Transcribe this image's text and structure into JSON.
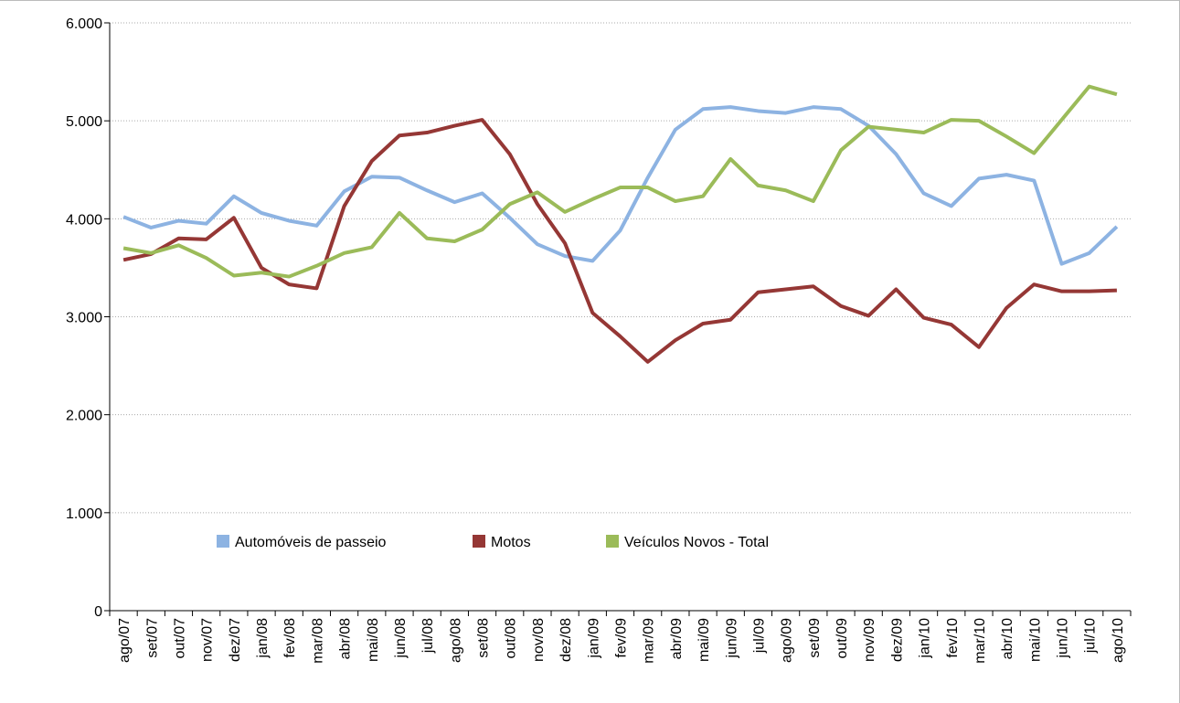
{
  "chart_data": {
    "type": "line",
    "categories": [
      "ago/07",
      "set/07",
      "out/07",
      "nov/07",
      "dez/07",
      "jan/08",
      "fev/08",
      "mar/08",
      "abr/08",
      "mai/08",
      "jun/08",
      "jul/08",
      "ago/08",
      "set/08",
      "out/08",
      "nov/08",
      "dez/08",
      "jan/09",
      "fev/09",
      "mar/09",
      "abr/09",
      "mai/09",
      "jun/09",
      "jul/09",
      "ago/09",
      "set/09",
      "out/09",
      "nov/09",
      "dez/09",
      "jan/10",
      "fev/10",
      "mar/10",
      "abr/10",
      "mai/10",
      "jun/10",
      "jul/10",
      "ago/10"
    ],
    "series": [
      {
        "name": "Automóveis de passeio",
        "color": "#8db3e2",
        "values": [
          4020,
          3910,
          3980,
          3950,
          4230,
          4060,
          3980,
          3930,
          4280,
          4430,
          4420,
          4290,
          4170,
          4260,
          4010,
          3740,
          3620,
          3570,
          3880,
          4420,
          4910,
          5120,
          5140,
          5100,
          5080,
          5140,
          5120,
          4950,
          4660,
          4260,
          4130,
          4410,
          4450,
          4390,
          3540,
          3650,
          3920
        ]
      },
      {
        "name": "Motos",
        "color": "#953735",
        "values": [
          3580,
          3640,
          3800,
          3790,
          4010,
          3500,
          3330,
          3290,
          4130,
          4590,
          4850,
          4880,
          4950,
          5010,
          4660,
          4150,
          3750,
          3040,
          2800,
          2540,
          2760,
          2930,
          2970,
          3250,
          3280,
          3310,
          3110,
          3010,
          3280,
          2990,
          2920,
          2690,
          3090,
          3330,
          3260,
          3260,
          3270
        ]
      },
      {
        "name": "Veículos Novos - Total",
        "color": "#9bbb59",
        "values": [
          3700,
          3650,
          3730,
          3600,
          3420,
          3450,
          3410,
          3520,
          3650,
          3710,
          4060,
          3800,
          3770,
          3890,
          4150,
          4270,
          4070,
          4200,
          4320,
          4320,
          4180,
          4230,
          4610,
          4340,
          4290,
          4180,
          4700,
          4940,
          4910,
          4880,
          5010,
          5000,
          4840,
          4670,
          5010,
          5350,
          5270
        ]
      }
    ],
    "ylim": [
      0,
      6000
    ],
    "yticks": [
      0,
      {
        "value": 1000,
        "label": "1.000"
      },
      {
        "value": 2000,
        "label": "2.000"
      },
      {
        "value": 3000,
        "label": "3.000"
      },
      {
        "value": 4000,
        "label": "4.000"
      },
      {
        "value": 5000,
        "label": "5.000"
      },
      {
        "value": 6000,
        "label": "6.000"
      }
    ],
    "grid": true
  }
}
